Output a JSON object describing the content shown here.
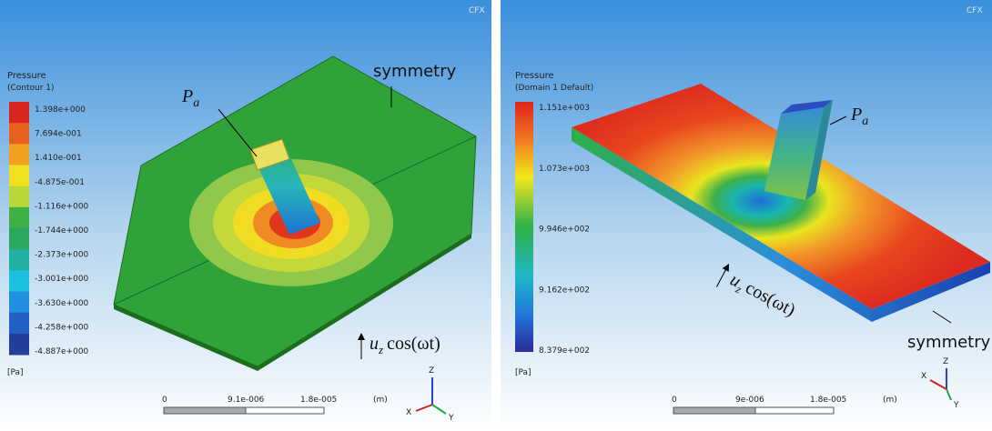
{
  "panels": [
    {
      "watermark": "CFX",
      "legend_title": "Pressure",
      "legend_subtitle": "(Contour 1)",
      "legend_labels": [
        "1.398e+000",
        "7.694e-001",
        "1.410e-001",
        "-4.875e-001",
        "-1.116e+000",
        "-1.744e+000",
        "-2.373e+000",
        "-3.001e+000",
        "-3.630e+000",
        "-4.258e+000",
        "-4.887e+000"
      ],
      "unit": "[Pa]",
      "scale_labels": [
        "0",
        "9.1e-006",
        "1.8e-005"
      ],
      "scale_unit": "(m)",
      "symmetry": "symmetry",
      "pa": {
        "symbol": "P",
        "subscript": "a"
      },
      "motion": {
        "symbol": "u",
        "subscript": "z",
        "text": "cos(ωt)"
      },
      "axes": [
        "Z",
        "X",
        "Y"
      ]
    },
    {
      "watermark": "CFX",
      "legend_title": "Pressure",
      "legend_subtitle": "(Domain 1 Default)",
      "legend_labels": [
        "1.151e+003",
        "1.073e+003",
        "9.946e+002",
        "9.162e+002",
        "8.379e+002"
      ],
      "unit": "[Pa]",
      "scale_labels": [
        "0",
        "9e-006",
        "1.8e-005"
      ],
      "scale_unit": "(m)",
      "symmetry": "symmetry",
      "pa": {
        "symbol": "P",
        "subscript": "a"
      },
      "motion": {
        "symbol": "u",
        "subscript": "z",
        "text": "cos(ωt)"
      },
      "axes": [
        "Z",
        "X",
        "Y"
      ]
    }
  ]
}
